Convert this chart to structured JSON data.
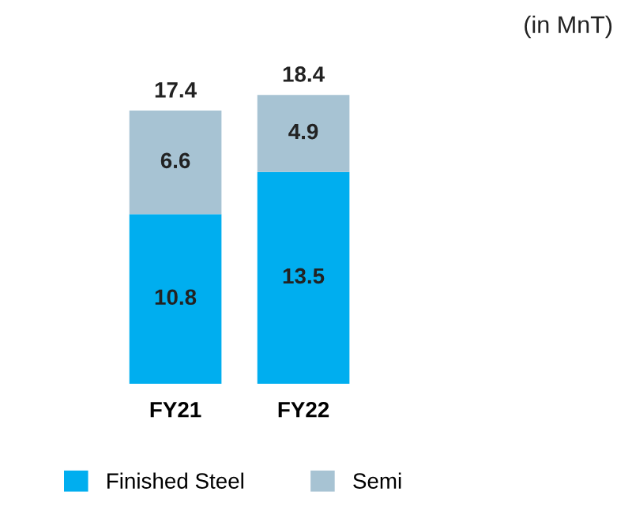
{
  "chart_data": {
    "type": "bar",
    "stacked": true,
    "categories": [
      "FY21",
      "FY22"
    ],
    "series": [
      {
        "name": "Finished Steel",
        "color": "#00aeef",
        "values": [
          10.8,
          13.5
        ]
      },
      {
        "name": "Semi",
        "color": "#a7c3d3",
        "values": [
          6.6,
          4.9
        ]
      }
    ],
    "data_labels": true,
    "totals": [
      "17.4",
      "18.4"
    ],
    "annotations": [
      "(in MnT)"
    ],
    "legend": "bottom",
    "grid": false,
    "tick_labels": "x"
  }
}
